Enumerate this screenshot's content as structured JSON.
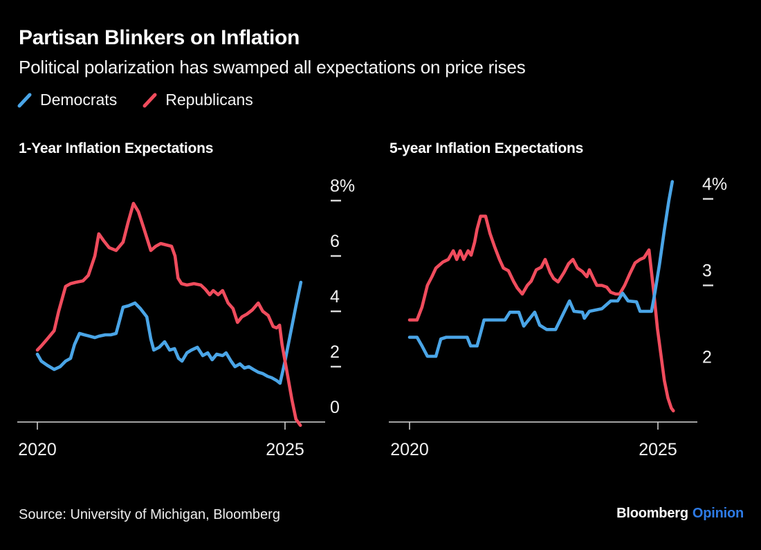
{
  "header": {
    "title": "Partisan Blinkers on Inflation",
    "subtitle": "Political polarization has swamped all expectations on price rises"
  },
  "legend": {
    "position": "top-left",
    "items": [
      {
        "label": "Democrats",
        "color": "#4AA5E7"
      },
      {
        "label": "Republicans",
        "color": "#F04C5D"
      }
    ]
  },
  "footer": {
    "source": "Source: University of Michigan, Bloomberg",
    "brand": "Bloomberg",
    "brand_suffix": "Opinion",
    "brand_suffix_color": "#2E7BE5"
  },
  "colors": {
    "background": "#000000",
    "axis": "#D9D9D9",
    "tick_label": "#F2F2F2",
    "democrats": "#4AA5E7",
    "republicans": "#F04C5D"
  },
  "chart_data": [
    {
      "type": "line",
      "title": "1-Year Inflation Expectations",
      "xlabel": "",
      "ylabel": "percent",
      "grid": false,
      "x_range": [
        2020,
        2025.35
      ],
      "y_range": [
        0,
        8
      ],
      "x_ticks": [
        {
          "label": "2020",
          "year": 2020
        },
        {
          "label": "2025",
          "year": 2025
        }
      ],
      "y_ticks": [
        {
          "label": "8%",
          "value": 8,
          "dash": true
        },
        {
          "label": "6",
          "value": 6,
          "dash": true
        },
        {
          "label": "4",
          "value": 4,
          "dash": true
        },
        {
          "label": "2",
          "value": 2,
          "dash": true
        },
        {
          "label": "0",
          "value": 0,
          "dash": false
        }
      ],
      "series": [
        {
          "name": "Democrats",
          "color": "#4AA5E7",
          "points": [
            [
              2020.0,
              2.45
            ],
            [
              2020.08,
              2.2
            ],
            [
              2020.2,
              2.05
            ],
            [
              2020.34,
              1.9
            ],
            [
              2020.46,
              2.0
            ],
            [
              2020.57,
              2.2
            ],
            [
              2020.67,
              2.3
            ],
            [
              2020.75,
              2.8
            ],
            [
              2020.85,
              3.2
            ],
            [
              2020.95,
              3.15
            ],
            [
              2021.06,
              3.1
            ],
            [
              2021.16,
              3.05
            ],
            [
              2021.24,
              3.1
            ],
            [
              2021.37,
              3.15
            ],
            [
              2021.48,
              3.15
            ],
            [
              2021.59,
              3.2
            ],
            [
              2021.65,
              3.6
            ],
            [
              2021.73,
              4.15
            ],
            [
              2021.84,
              4.2
            ],
            [
              2021.97,
              4.3
            ],
            [
              2022.08,
              4.1
            ],
            [
              2022.21,
              3.8
            ],
            [
              2022.29,
              3.0
            ],
            [
              2022.35,
              2.6
            ],
            [
              2022.46,
              2.7
            ],
            [
              2022.57,
              2.9
            ],
            [
              2022.67,
              2.6
            ],
            [
              2022.77,
              2.65
            ],
            [
              2022.85,
              2.3
            ],
            [
              2022.92,
              2.2
            ],
            [
              2023.02,
              2.5
            ],
            [
              2023.11,
              2.6
            ],
            [
              2023.23,
              2.7
            ],
            [
              2023.34,
              2.4
            ],
            [
              2023.44,
              2.5
            ],
            [
              2023.53,
              2.25
            ],
            [
              2023.62,
              2.45
            ],
            [
              2023.74,
              2.4
            ],
            [
              2023.81,
              2.5
            ],
            [
              2023.91,
              2.2
            ],
            [
              2023.99,
              2.0
            ],
            [
              2024.09,
              2.1
            ],
            [
              2024.18,
              1.95
            ],
            [
              2024.27,
              2.0
            ],
            [
              2024.36,
              1.9
            ],
            [
              2024.46,
              1.8
            ],
            [
              2024.55,
              1.75
            ],
            [
              2024.65,
              1.65
            ],
            [
              2024.73,
              1.6
            ],
            [
              2024.83,
              1.5
            ],
            [
              2024.9,
              1.4
            ],
            [
              2025.0,
              2.2
            ],
            [
              2025.11,
              3.2
            ],
            [
              2025.22,
              4.2
            ],
            [
              2025.32,
              5.05
            ]
          ]
        },
        {
          "name": "Republicans",
          "color": "#F04C5D",
          "points": [
            [
              2020.0,
              2.6
            ],
            [
              2020.08,
              2.75
            ],
            [
              2020.2,
              3.0
            ],
            [
              2020.34,
              3.3
            ],
            [
              2020.43,
              4.0
            ],
            [
              2020.57,
              4.9
            ],
            [
              2020.67,
              5.0
            ],
            [
              2020.78,
              5.05
            ],
            [
              2020.92,
              5.1
            ],
            [
              2021.03,
              5.3
            ],
            [
              2021.16,
              6.0
            ],
            [
              2021.24,
              6.8
            ],
            [
              2021.34,
              6.55
            ],
            [
              2021.45,
              6.3
            ],
            [
              2021.59,
              6.2
            ],
            [
              2021.73,
              6.5
            ],
            [
              2021.83,
              7.2
            ],
            [
              2021.94,
              7.9
            ],
            [
              2022.04,
              7.6
            ],
            [
              2022.15,
              7.0
            ],
            [
              2022.29,
              6.2
            ],
            [
              2022.39,
              6.35
            ],
            [
              2022.49,
              6.45
            ],
            [
              2022.6,
              6.4
            ],
            [
              2022.71,
              6.35
            ],
            [
              2022.78,
              6.0
            ],
            [
              2022.84,
              5.2
            ],
            [
              2022.91,
              5.0
            ],
            [
              2023.02,
              4.95
            ],
            [
              2023.16,
              5.0
            ],
            [
              2023.3,
              4.95
            ],
            [
              2023.39,
              4.8
            ],
            [
              2023.48,
              4.6
            ],
            [
              2023.55,
              4.75
            ],
            [
              2023.65,
              4.6
            ],
            [
              2023.74,
              4.75
            ],
            [
              2023.85,
              4.3
            ],
            [
              2023.95,
              4.1
            ],
            [
              2024.04,
              3.6
            ],
            [
              2024.13,
              3.8
            ],
            [
              2024.23,
              3.9
            ],
            [
              2024.34,
              4.05
            ],
            [
              2024.46,
              4.3
            ],
            [
              2024.55,
              4.0
            ],
            [
              2024.66,
              3.85
            ],
            [
              2024.76,
              3.45
            ],
            [
              2024.83,
              3.4
            ],
            [
              2024.89,
              3.5
            ],
            [
              2024.94,
              2.8
            ],
            [
              2025.04,
              1.8
            ],
            [
              2025.14,
              0.8
            ],
            [
              2025.22,
              0.1
            ],
            [
              2025.31,
              -0.12
            ]
          ]
        }
      ]
    },
    {
      "type": "line",
      "title": "5-year Inflation Expectations",
      "xlabel": "",
      "ylabel": "percent",
      "grid": false,
      "x_range": [
        2020,
        2025.35
      ],
      "y_range": [
        1.42,
        4.3
      ],
      "x_ticks": [
        {
          "label": "2020",
          "year": 2020
        },
        {
          "label": "2025",
          "year": 2025
        }
      ],
      "y_ticks": [
        {
          "label": "4%",
          "value": 4,
          "dash": true
        },
        {
          "label": "3",
          "value": 3,
          "dash": true
        },
        {
          "label": "2",
          "value": 2,
          "dash": false
        }
      ],
      "series": [
        {
          "name": "Republicans",
          "color": "#F04C5D",
          "points": [
            [
              2020.0,
              2.6
            ],
            [
              2020.15,
              2.6
            ],
            [
              2020.25,
              2.75
            ],
            [
              2020.36,
              3.0
            ],
            [
              2020.45,
              3.1
            ],
            [
              2020.53,
              3.2
            ],
            [
              2020.67,
              3.27
            ],
            [
              2020.78,
              3.3
            ],
            [
              2020.88,
              3.4
            ],
            [
              2020.95,
              3.3
            ],
            [
              2021.02,
              3.4
            ],
            [
              2021.09,
              3.3
            ],
            [
              2021.18,
              3.4
            ],
            [
              2021.24,
              3.35
            ],
            [
              2021.31,
              3.5
            ],
            [
              2021.36,
              3.65
            ],
            [
              2021.43,
              3.8
            ],
            [
              2021.53,
              3.8
            ],
            [
              2021.62,
              3.6
            ],
            [
              2021.71,
              3.45
            ],
            [
              2021.81,
              3.3
            ],
            [
              2021.89,
              3.2
            ],
            [
              2021.99,
              3.17
            ],
            [
              2022.09,
              3.05
            ],
            [
              2022.17,
              2.97
            ],
            [
              2022.27,
              2.9
            ],
            [
              2022.37,
              3.0
            ],
            [
              2022.45,
              3.05
            ],
            [
              2022.55,
              3.18
            ],
            [
              2022.65,
              3.21
            ],
            [
              2022.73,
              3.3
            ],
            [
              2022.83,
              3.15
            ],
            [
              2022.9,
              3.08
            ],
            [
              2022.99,
              3.04
            ],
            [
              2023.11,
              3.15
            ],
            [
              2023.2,
              3.25
            ],
            [
              2023.29,
              3.3
            ],
            [
              2023.38,
              3.2
            ],
            [
              2023.48,
              3.16
            ],
            [
              2023.57,
              3.1
            ],
            [
              2023.62,
              3.18
            ],
            [
              2023.7,
              3.08
            ],
            [
              2023.77,
              3.0
            ],
            [
              2023.87,
              3.0
            ],
            [
              2023.97,
              2.98
            ],
            [
              2024.05,
              2.92
            ],
            [
              2024.15,
              2.9
            ],
            [
              2024.23,
              2.9
            ],
            [
              2024.33,
              3.0
            ],
            [
              2024.43,
              3.13
            ],
            [
              2024.54,
              3.26
            ],
            [
              2024.64,
              3.3
            ],
            [
              2024.72,
              3.32
            ],
            [
              2024.82,
              3.41
            ],
            [
              2024.92,
              2.9
            ],
            [
              2024.99,
              2.5
            ],
            [
              2025.06,
              2.2
            ],
            [
              2025.13,
              1.9
            ],
            [
              2025.2,
              1.7
            ],
            [
              2025.27,
              1.58
            ],
            [
              2025.31,
              1.55
            ]
          ]
        },
        {
          "name": "Democrats",
          "color": "#4AA5E7",
          "points": [
            [
              2020.0,
              2.4
            ],
            [
              2020.15,
              2.4
            ],
            [
              2020.25,
              2.3
            ],
            [
              2020.36,
              2.18
            ],
            [
              2020.53,
              2.18
            ],
            [
              2020.63,
              2.38
            ],
            [
              2020.74,
              2.4
            ],
            [
              2021.16,
              2.4
            ],
            [
              2021.23,
              2.3
            ],
            [
              2021.36,
              2.3
            ],
            [
              2021.43,
              2.45
            ],
            [
              2021.5,
              2.6
            ],
            [
              2021.92,
              2.6
            ],
            [
              2022.02,
              2.69
            ],
            [
              2022.2,
              2.69
            ],
            [
              2022.3,
              2.53
            ],
            [
              2022.52,
              2.69
            ],
            [
              2022.62,
              2.54
            ],
            [
              2022.76,
              2.49
            ],
            [
              2022.94,
              2.49
            ],
            [
              2023.22,
              2.82
            ],
            [
              2023.31,
              2.7
            ],
            [
              2023.48,
              2.69
            ],
            [
              2023.52,
              2.62
            ],
            [
              2023.62,
              2.7
            ],
            [
              2023.87,
              2.73
            ],
            [
              2024.05,
              2.82
            ],
            [
              2024.19,
              2.82
            ],
            [
              2024.29,
              2.91
            ],
            [
              2024.4,
              2.82
            ],
            [
              2024.57,
              2.81
            ],
            [
              2024.64,
              2.7
            ],
            [
              2024.87,
              2.7
            ],
            [
              2024.94,
              2.92
            ],
            [
              2025.03,
              3.24
            ],
            [
              2025.13,
              3.64
            ],
            [
              2025.22,
              3.98
            ],
            [
              2025.29,
              4.2
            ]
          ]
        }
      ]
    }
  ]
}
